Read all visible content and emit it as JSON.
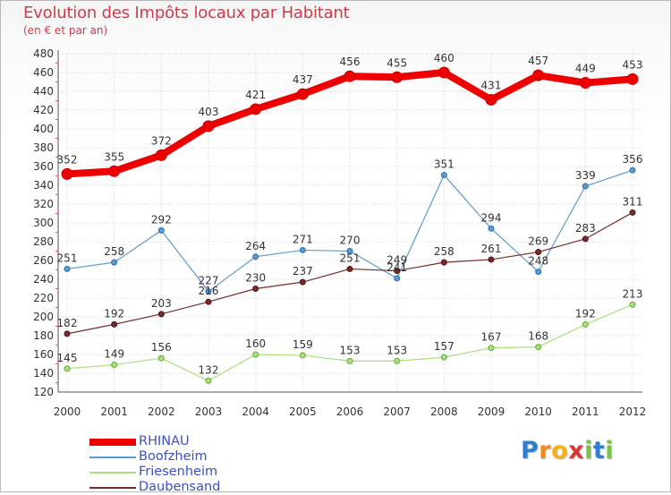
{
  "title": "Evolution des Impôts locaux par Habitant",
  "subtitle": "(en € et par an)",
  "brand": {
    "letters": [
      "P",
      "r",
      "o",
      "x",
      "i",
      "t",
      "i"
    ],
    "colors": [
      "#2f7fd0",
      "#f28a1e",
      "#f2b21e",
      "#d93636",
      "#7cc242",
      "#2f7fd0",
      "#7cc242"
    ]
  },
  "chart_data": {
    "type": "line",
    "x": [
      "2000",
      "2001",
      "2002",
      "2003",
      "2004",
      "2005",
      "2006",
      "2007",
      "2008",
      "2009",
      "2010",
      "2011",
      "2012"
    ],
    "ylim": [
      120,
      480
    ],
    "yticks": [
      120,
      140,
      160,
      180,
      200,
      220,
      240,
      260,
      280,
      300,
      320,
      340,
      360,
      380,
      400,
      420,
      440,
      460,
      480
    ],
    "ytick_labels": [
      "120",
      "140",
      "160",
      "180",
      "200",
      "220",
      "240",
      "260",
      "280",
      "300",
      "320",
      "340",
      "360",
      "380",
      "400",
      "420",
      "440",
      "460",
      "480"
    ],
    "grid": true,
    "legend_position": "bottom-left",
    "series": [
      {
        "name": "RHINAU",
        "color": "#ee0000",
        "values": [
          352,
          355,
          372,
          403,
          421,
          437,
          456,
          455,
          460,
          431,
          457,
          449,
          453
        ],
        "labels": [
          "352",
          "355",
          "372",
          "403",
          "421",
          "437",
          "456",
          "455",
          "460",
          "431",
          "457",
          "449",
          "453"
        ]
      },
      {
        "name": "Boofzheim",
        "color": "#5b9bd5",
        "values": [
          251,
          258,
          292,
          227,
          264,
          271,
          270,
          241,
          351,
          294,
          248,
          339,
          356
        ],
        "labels": [
          "251",
          "258",
          "292",
          "227",
          "264",
          "271",
          "270",
          "241",
          "351",
          "294",
          "248",
          "339",
          "356"
        ]
      },
      {
        "name": "Friesenheim",
        "color": "#a8e07a",
        "values": [
          145,
          149,
          156,
          132,
          160,
          159,
          153,
          153,
          157,
          167,
          168,
          192,
          213
        ],
        "labels": [
          "145",
          "149",
          "156",
          "132",
          "160",
          "159",
          "153",
          "153",
          "157",
          "167",
          "168",
          "192",
          "213"
        ]
      },
      {
        "name": "Daubensand",
        "color": "#7a2a2a",
        "values": [
          182,
          192,
          203,
          216,
          230,
          237,
          251,
          249,
          258,
          261,
          269,
          283,
          311
        ],
        "labels": [
          "182",
          "192",
          "203",
          "216",
          "230",
          "237",
          "251",
          "249",
          "258",
          "261",
          "269",
          "283",
          "311"
        ]
      }
    ]
  }
}
